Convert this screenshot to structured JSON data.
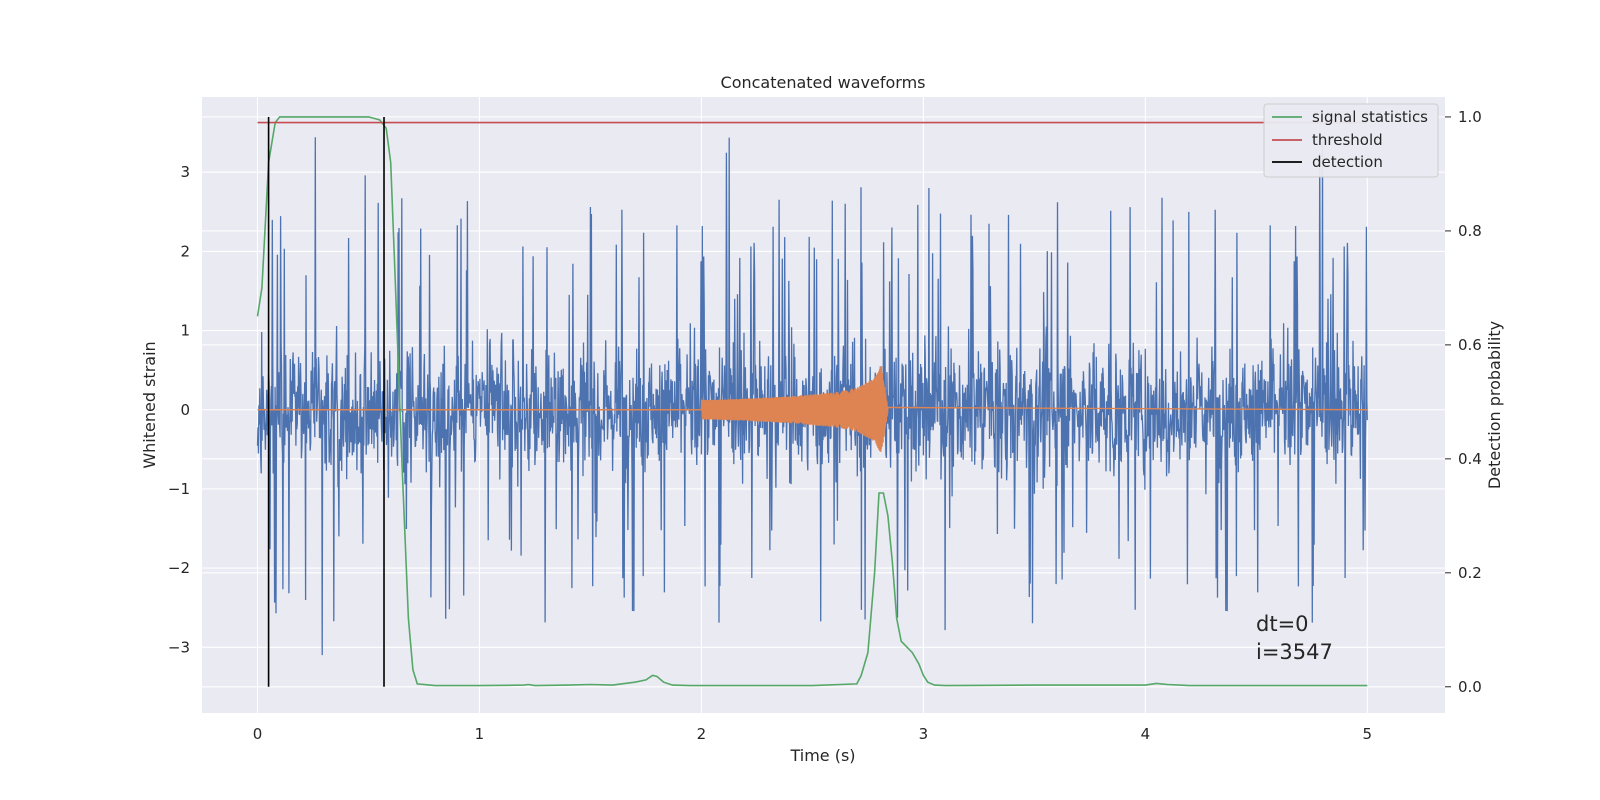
{
  "chart_data": {
    "type": "line",
    "title": "Concatenated waveforms",
    "xlabel": "Time (s)",
    "ylabel": "Whitened strain",
    "y2label": "Detection probability",
    "xlim": [
      -0.25,
      5.35
    ],
    "ylim": [
      -3.83,
      3.95
    ],
    "y2lim": [
      -0.046,
      1.035
    ],
    "x_ticks": [
      0,
      1,
      2,
      3,
      4,
      5
    ],
    "x_tick_labels": [
      "0",
      "1",
      "2",
      "3",
      "4",
      "5"
    ],
    "y_ticks": [
      -3,
      -2,
      -1,
      0,
      1,
      2,
      3
    ],
    "y_tick_labels": [
      "−3",
      "−2",
      "−1",
      "0",
      "1",
      "2",
      "3"
    ],
    "y2_ticks": [
      0.0,
      0.2,
      0.4,
      0.6,
      0.8,
      1.0
    ],
    "y2_tick_labels": [
      "0.0",
      "0.2",
      "0.4",
      "0.6",
      "0.8",
      "1.0"
    ],
    "grid": true,
    "legend_position": "top-right",
    "annotation": [
      "dt=0",
      "i=3547"
    ],
    "colors": {
      "background": "#eaeaf2",
      "grid": "#ffffff",
      "strain": "#4c72b0",
      "injection": "#dd8452",
      "signal_statistics": "#55a868",
      "threshold": "#c44e52",
      "detection": "#000000"
    },
    "strain_series": {
      "name": "whitened strain",
      "axis": "left",
      "x_range": [
        0,
        5
      ],
      "typical_amplitude": 0.75,
      "peak_amplitude": 3.6,
      "min_value": -3.45
    },
    "injection_series": {
      "name": "injected waveform",
      "axis": "left",
      "x": [
        0,
        2.0,
        2.2,
        2.4,
        2.6,
        2.7,
        2.78,
        2.81,
        2.84,
        5
      ],
      "envelope": [
        0,
        0.12,
        0.14,
        0.17,
        0.22,
        0.28,
        0.4,
        0.57,
        0.03,
        0
      ]
    },
    "series": [
      {
        "name": "signal statistics",
        "axis": "right",
        "x": [
          0,
          0.02,
          0.05,
          0.08,
          0.1,
          0.15,
          0.5,
          0.55,
          0.58,
          0.6,
          0.62,
          0.65,
          0.68,
          0.7,
          0.72,
          0.8,
          1.0,
          1.2,
          1.22,
          1.25,
          1.4,
          1.5,
          1.6,
          1.7,
          1.75,
          1.78,
          1.8,
          1.83,
          1.87,
          1.95,
          2.2,
          2.5,
          2.7,
          2.72,
          2.75,
          2.78,
          2.8,
          2.82,
          2.84,
          2.86,
          2.88,
          2.9,
          2.95,
          2.98,
          3.0,
          3.02,
          3.05,
          3.1,
          3.5,
          4.0,
          4.05,
          4.1,
          4.2,
          4.5,
          5.0
        ],
        "values": [
          0.65,
          0.7,
          0.92,
          0.99,
          1.0,
          1.0,
          1.0,
          0.995,
          0.98,
          0.92,
          0.72,
          0.4,
          0.12,
          0.03,
          0.005,
          0.002,
          0.002,
          0.003,
          0.004,
          0.002,
          0.003,
          0.004,
          0.003,
          0.008,
          0.012,
          0.02,
          0.018,
          0.008,
          0.003,
          0.002,
          0.002,
          0.002,
          0.005,
          0.02,
          0.06,
          0.2,
          0.34,
          0.34,
          0.3,
          0.22,
          0.12,
          0.08,
          0.06,
          0.04,
          0.02,
          0.008,
          0.003,
          0.002,
          0.003,
          0.003,
          0.006,
          0.004,
          0.002,
          0.002,
          0.002
        ]
      },
      {
        "name": "threshold",
        "axis": "right",
        "x": [
          0,
          5
        ],
        "values": [
          0.99,
          0.99
        ]
      },
      {
        "name": "detection",
        "axis": "right",
        "type": "vlines",
        "x": [
          0.05,
          0.57
        ],
        "ymin": 0.0,
        "ymax": 1.0
      }
    ],
    "legend": [
      "signal statistics",
      "threshold",
      "detection"
    ]
  }
}
